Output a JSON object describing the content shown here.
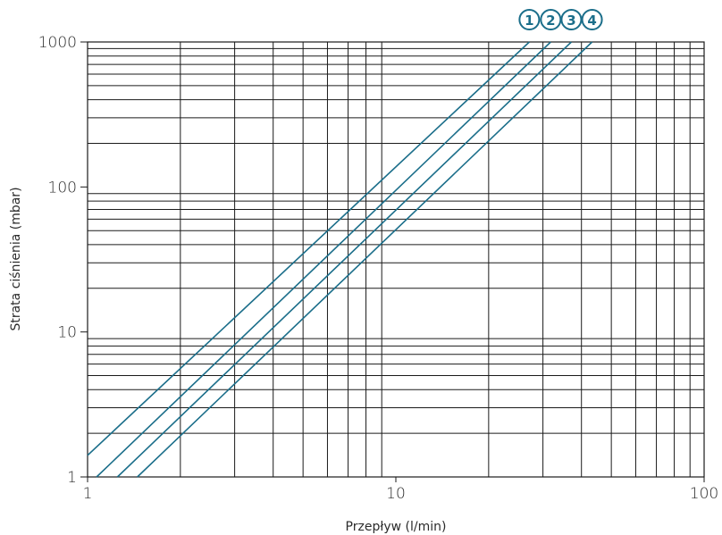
{
  "chart_data": {
    "type": "line",
    "xlabel": "Przepływ (l/min)",
    "ylabel": "Strata ciśnienia (mbar)",
    "x_scale": "log",
    "y_scale": "log",
    "xlim": [
      1,
      100
    ],
    "ylim": [
      1,
      1000
    ],
    "x_ticks": [
      1,
      10,
      100
    ],
    "y_ticks": [
      1,
      10,
      100,
      1000
    ],
    "x_tick_labels": [
      "1",
      "10",
      "100"
    ],
    "y_tick_labels": [
      "1",
      "10",
      "100",
      "1000"
    ],
    "grid": true,
    "line_color": "#1b6e8a",
    "series": [
      {
        "label": "1",
        "points": [
          [
            1,
            1.41
          ],
          [
            27.1,
            1000
          ]
        ]
      },
      {
        "label": "2",
        "points": [
          [
            1.07,
            1
          ],
          [
            31.8,
            1000
          ]
        ]
      },
      {
        "label": "3",
        "points": [
          [
            1.25,
            1
          ],
          [
            37.1,
            1000
          ]
        ]
      },
      {
        "label": "4",
        "points": [
          [
            1.45,
            1
          ],
          [
            43.3,
            1000
          ]
        ]
      }
    ]
  }
}
